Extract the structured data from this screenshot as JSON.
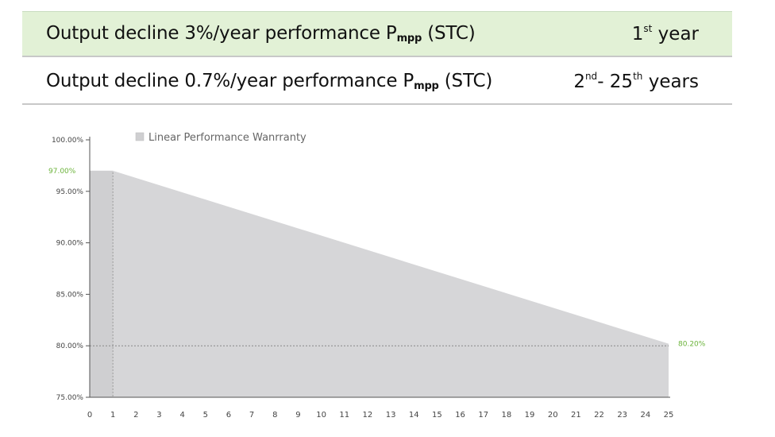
{
  "header_rows": [
    {
      "label_main": "Output decline 3%/year performance P",
      "label_sub": "mpp",
      "label_tail": " (STC)",
      "years_prefix": "1",
      "years_sup": "st",
      "years_suffix": " year"
    },
    {
      "label_main": "Output decline 0.7%/year performance P",
      "label_sub": "mpp",
      "label_tail": " (STC)",
      "years_prefix": "2",
      "years_sup1": "nd",
      "years_sep": "- 25",
      "years_sup2": "th",
      "years_suffix": " years"
    }
  ],
  "chart_data": {
    "type": "area",
    "title": "",
    "xlabel": "",
    "ylabel": "",
    "x": [
      0,
      1,
      25
    ],
    "series": [
      {
        "name": "Linear Performance Wanrranty",
        "values": [
          97.0,
          97.0,
          80.2
        ],
        "color": "#d6d6d8"
      }
    ],
    "xlim": [
      0,
      25
    ],
    "ylim": [
      75,
      100
    ],
    "y_ticks": [
      100,
      95,
      90,
      85,
      80,
      75
    ],
    "y_tick_labels": [
      "100.00%",
      "95.00%",
      "90.00%",
      "85.00%",
      "80.00%",
      "75.00%"
    ],
    "x_ticks": [
      0,
      1,
      2,
      3,
      4,
      5,
      6,
      7,
      8,
      9,
      10,
      11,
      12,
      13,
      14,
      15,
      16,
      17,
      18,
      19,
      20,
      21,
      22,
      23,
      24,
      25
    ],
    "x_tick_labels": [
      "0",
      "1",
      "2",
      "3",
      "4",
      "5",
      "6",
      "7",
      "8",
      "9",
      "10",
      "11",
      "12",
      "13",
      "14",
      "15",
      "16",
      "17",
      "18",
      "19",
      "20",
      "21",
      "22",
      "23",
      "24",
      "25"
    ],
    "annotations": [
      {
        "text": "97.00%",
        "value": 97.0,
        "color": "#6bb33a"
      },
      {
        "text": "80.20%",
        "value": 80.2,
        "color": "#6bb33a"
      }
    ],
    "reference_line": {
      "value": 80.0,
      "style": "dotted"
    },
    "legend": {
      "label": "Linear Performance Wanrranty",
      "position": "top-left"
    },
    "grid": false
  }
}
